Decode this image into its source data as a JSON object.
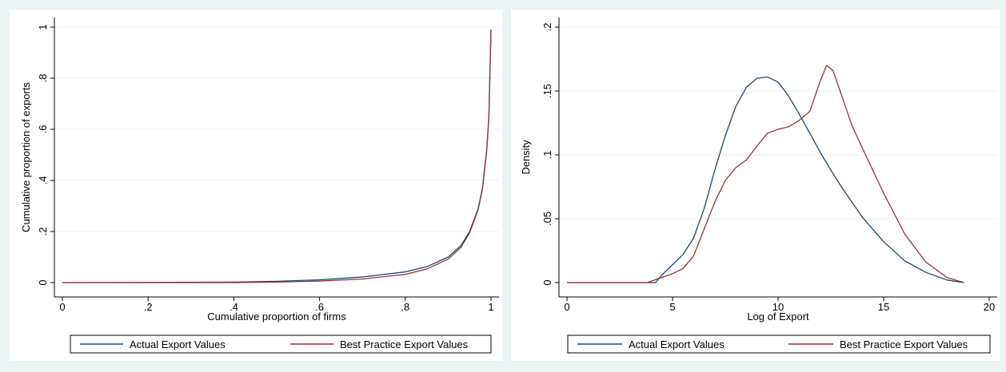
{
  "colors": {
    "background": "#eaf2f3",
    "plot_background": "#ffffff",
    "grid": "#eaf2f3",
    "actual_series": "#1a476f",
    "best_practice_series": "#90353b"
  },
  "chart_data": [
    {
      "type": "line",
      "title": "",
      "xlabel": "Cumulative proportion of firms",
      "ylabel": "Cumulative proportion of exports",
      "xlim": [
        0,
        1
      ],
      "ylim": [
        0,
        1
      ],
      "xticks": [
        "0",
        ".2",
        ".4",
        ".6",
        ".8",
        "1"
      ],
      "yticks": [
        "0",
        ".2",
        ".4",
        ".6",
        ".8",
        "1"
      ],
      "grid": true,
      "legend_position": "bottom",
      "series": [
        {
          "name": "Actual Export Values",
          "color": "#1a476f",
          "x": [
            0,
            0.4,
            0.5,
            0.6,
            0.7,
            0.8,
            0.85,
            0.9,
            0.93,
            0.95,
            0.97,
            0.98,
            0.99,
            0.995,
            1.0
          ],
          "y": [
            0,
            0.002,
            0.005,
            0.011,
            0.022,
            0.042,
            0.062,
            0.1,
            0.145,
            0.2,
            0.29,
            0.37,
            0.52,
            0.65,
            0.99
          ]
        },
        {
          "name": "Best Practice Export Values",
          "color": "#90353b",
          "x": [
            0,
            0.4,
            0.5,
            0.6,
            0.7,
            0.8,
            0.85,
            0.9,
            0.93,
            0.95,
            0.97,
            0.98,
            0.99,
            0.995,
            1.0
          ],
          "y": [
            0,
            0.0,
            0.002,
            0.006,
            0.014,
            0.032,
            0.053,
            0.092,
            0.138,
            0.195,
            0.285,
            0.365,
            0.515,
            0.645,
            0.99
          ]
        }
      ]
    },
    {
      "type": "line",
      "title": "",
      "xlabel": "Log of Export",
      "ylabel": "Density",
      "xlim": [
        0,
        20
      ],
      "ylim": [
        0,
        0.2
      ],
      "xticks": [
        "0",
        "5",
        "10",
        "15",
        "20"
      ],
      "yticks": [
        "0",
        ".05",
        ".1",
        ".15",
        ".2"
      ],
      "grid": true,
      "legend_position": "bottom",
      "series": [
        {
          "name": "Actual Export Values",
          "color": "#1a476f",
          "x": [
            0,
            4.2,
            4.5,
            5,
            5.5,
            6,
            6.5,
            7,
            7.5,
            8,
            8.5,
            9,
            9.5,
            10,
            10.5,
            11,
            11.5,
            12,
            12.5,
            13,
            14,
            15,
            16,
            17,
            18,
            18.8
          ],
          "y": [
            0,
            0,
            0.006,
            0.014,
            0.022,
            0.035,
            0.058,
            0.088,
            0.115,
            0.138,
            0.153,
            0.16,
            0.161,
            0.157,
            0.146,
            0.132,
            0.117,
            0.102,
            0.088,
            0.075,
            0.051,
            0.032,
            0.017,
            0.008,
            0.002,
            0.0
          ]
        },
        {
          "name": "Best Practice Export Values",
          "color": "#90353b",
          "x": [
            0,
            3.8,
            4.5,
            5,
            5.5,
            6,
            6.5,
            7,
            7.5,
            8,
            8.5,
            9,
            9.5,
            10,
            10.5,
            11,
            11.5,
            12,
            12.3,
            12.6,
            13,
            13.5,
            14,
            15,
            16,
            17,
            18,
            18.8
          ],
          "y": [
            0,
            0,
            0.004,
            0.007,
            0.011,
            0.021,
            0.042,
            0.063,
            0.08,
            0.09,
            0.096,
            0.107,
            0.117,
            0.12,
            0.122,
            0.127,
            0.134,
            0.158,
            0.17,
            0.166,
            0.147,
            0.123,
            0.105,
            0.07,
            0.038,
            0.016,
            0.004,
            0.0
          ]
        }
      ]
    }
  ]
}
